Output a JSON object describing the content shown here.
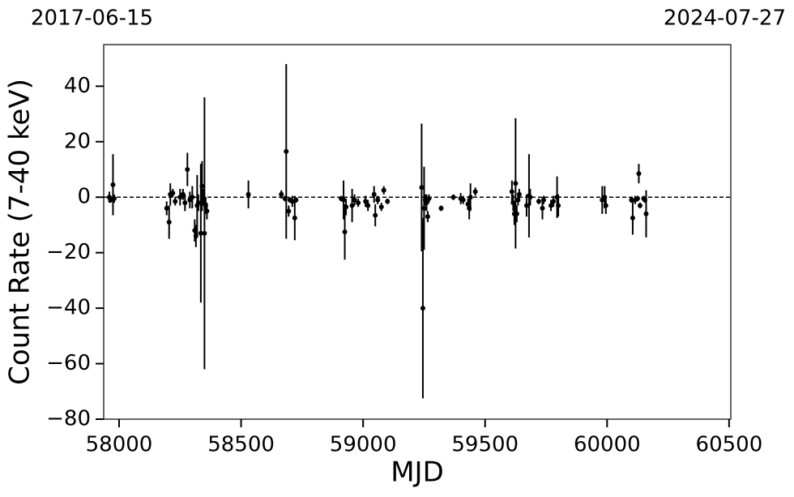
{
  "chart_data": {
    "type": "errorbar",
    "annotations": [
      "2017-06-15",
      "2024-07-27"
    ],
    "xlabel": "MJD",
    "ylabel": "Count Rate (7-40 keV)",
    "xlim": [
      57937,
      60507
    ],
    "ylim": [
      -80,
      55
    ],
    "xticks": [
      58000,
      58500,
      59000,
      59500,
      60000,
      60500
    ],
    "yticks": [
      {
        "value": -80,
        "label": "−80"
      },
      {
        "value": -60,
        "label": "−60"
      },
      {
        "value": -40,
        "label": "−40"
      },
      {
        "value": -20,
        "label": "−20"
      },
      0,
      20,
      40
    ],
    "reference_line": 0,
    "series": [
      {
        "color": "#000000",
        "x": [
          57960,
          57965,
          57975,
          57980,
          58195,
          58205,
          58210,
          58220,
          58230,
          58250,
          58262,
          58270,
          58280,
          58290,
          58300,
          58310,
          58315,
          58320,
          58325,
          58335,
          58340,
          58345,
          58350,
          58355,
          58360,
          58530,
          58665,
          58680,
          58685,
          58695,
          58700,
          58710,
          58720,
          58725,
          58910,
          58920,
          58925,
          58930,
          58955,
          58965,
          58980,
          59010,
          59020,
          59045,
          59050,
          59060,
          59075,
          59085,
          59100,
          59240,
          59245,
          59250,
          59255,
          59260,
          59265,
          59270,
          59320,
          59370,
          59400,
          59410,
          59430,
          59435,
          59440,
          59460,
          59610,
          59615,
          59620,
          59625,
          59630,
          59635,
          59640,
          59670,
          59680,
          59685,
          59720,
          59735,
          59740,
          59770,
          59780,
          59795,
          59800,
          59980,
          59990,
          59995,
          60100,
          60105,
          60115,
          60125,
          60130,
          60135,
          60150,
          60155,
          60160
        ],
        "values": [
          0,
          -1,
          4.5,
          -0.5,
          -4,
          -9,
          1,
          1.5,
          -1.5,
          0,
          1,
          -2,
          10,
          -1,
          0,
          -12,
          -14,
          -3,
          -2,
          -13,
          4,
          0,
          -13,
          -3,
          -5,
          1,
          1,
          -0.5,
          16.5,
          -5,
          -1,
          -1.5,
          -7.5,
          -1,
          -0.5,
          -1,
          -12.5,
          -3.5,
          -3,
          -1,
          -2,
          -1.5,
          -3,
          1,
          -6.5,
          -1,
          -3.5,
          2.5,
          -1.5,
          3.5,
          -40,
          -4,
          -1,
          -2,
          -7,
          -0.5,
          -4,
          0,
          -0.5,
          -1,
          -2.5,
          -4,
          0,
          2,
          2,
          -2,
          -6,
          5,
          -6,
          -1,
          1,
          -3,
          0.5,
          0,
          -1.5,
          -4,
          -1,
          -3,
          -1.5,
          0,
          -3,
          -1,
          0,
          -3,
          -1,
          -7.5,
          -1,
          -0.5,
          8.5,
          -3,
          -0.5,
          -1,
          -6
        ],
        "errors": [
          2,
          1,
          11,
          1.5,
          2.5,
          6,
          4,
          1.5,
          1.5,
          3,
          2,
          3,
          6,
          3,
          4,
          4,
          4,
          11,
          3,
          25,
          9,
          3,
          49,
          3,
          3,
          5,
          1.5,
          1,
          31.5,
          2,
          1,
          2,
          8,
          1,
          1,
          7,
          10,
          3,
          6,
          2,
          1.5,
          2,
          2,
          3,
          4,
          1.5,
          1.5,
          1.5,
          1,
          23,
          32.5,
          15,
          2,
          3,
          2,
          1.5,
          1,
          1,
          2,
          1.5,
          2,
          4,
          5,
          1.5,
          4,
          3,
          4,
          23.5,
          3,
          2,
          2,
          4,
          15,
          3,
          1,
          4,
          1.5,
          2,
          2,
          7.5,
          4,
          5,
          4,
          3,
          1,
          6,
          1.5,
          1,
          3.5,
          1,
          1,
          1,
          8.5
        ]
      }
    ]
  }
}
